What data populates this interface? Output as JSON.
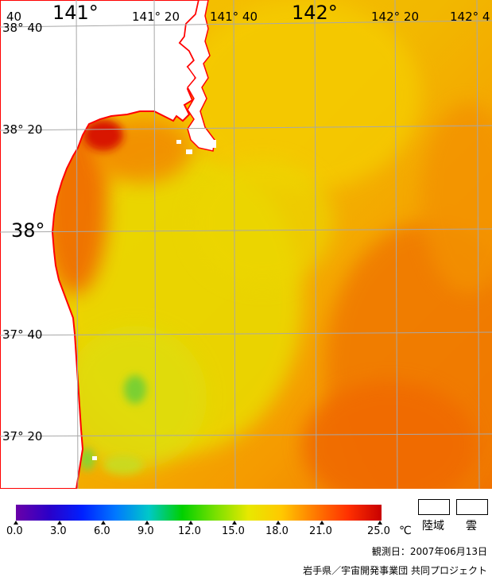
{
  "map": {
    "lat_labels": [
      "38° 40",
      "38° 20",
      "38°",
      "37° 40",
      "37° 20"
    ],
    "lon_labels": [
      "40",
      "141°",
      "141° 20",
      "141° 40",
      "142°",
      "142° 20",
      "142° 4"
    ],
    "colors": {
      "land": "#ffffff",
      "coast": "#ff0000",
      "grid": "#a0a0a0",
      "sea_warm": "#f06e00",
      "sea_mid": "#f7b400",
      "sea_cool": "#e8d800",
      "sea_green": "#78d232"
    }
  },
  "legend": {
    "tick_labels": [
      "0.0",
      "3.0",
      "6.0",
      "9.0",
      "12.0",
      "15.0",
      "18.0",
      "21.0",
      "25.0"
    ],
    "unit": "℃",
    "land_label": "陸域",
    "cloud_label": "雲",
    "gradient": [
      "#6a00a8",
      "#2b00c8",
      "#0020ff",
      "#0078ff",
      "#00c8c8",
      "#00d000",
      "#78e000",
      "#e8e800",
      "#ffc800",
      "#ff7a00",
      "#ff3000",
      "#c80000"
    ]
  },
  "footer": {
    "observation_date": "観測日：2007年06月13日",
    "credit": "岩手県／宇宙開発事業団  共同プロジェクト"
  }
}
